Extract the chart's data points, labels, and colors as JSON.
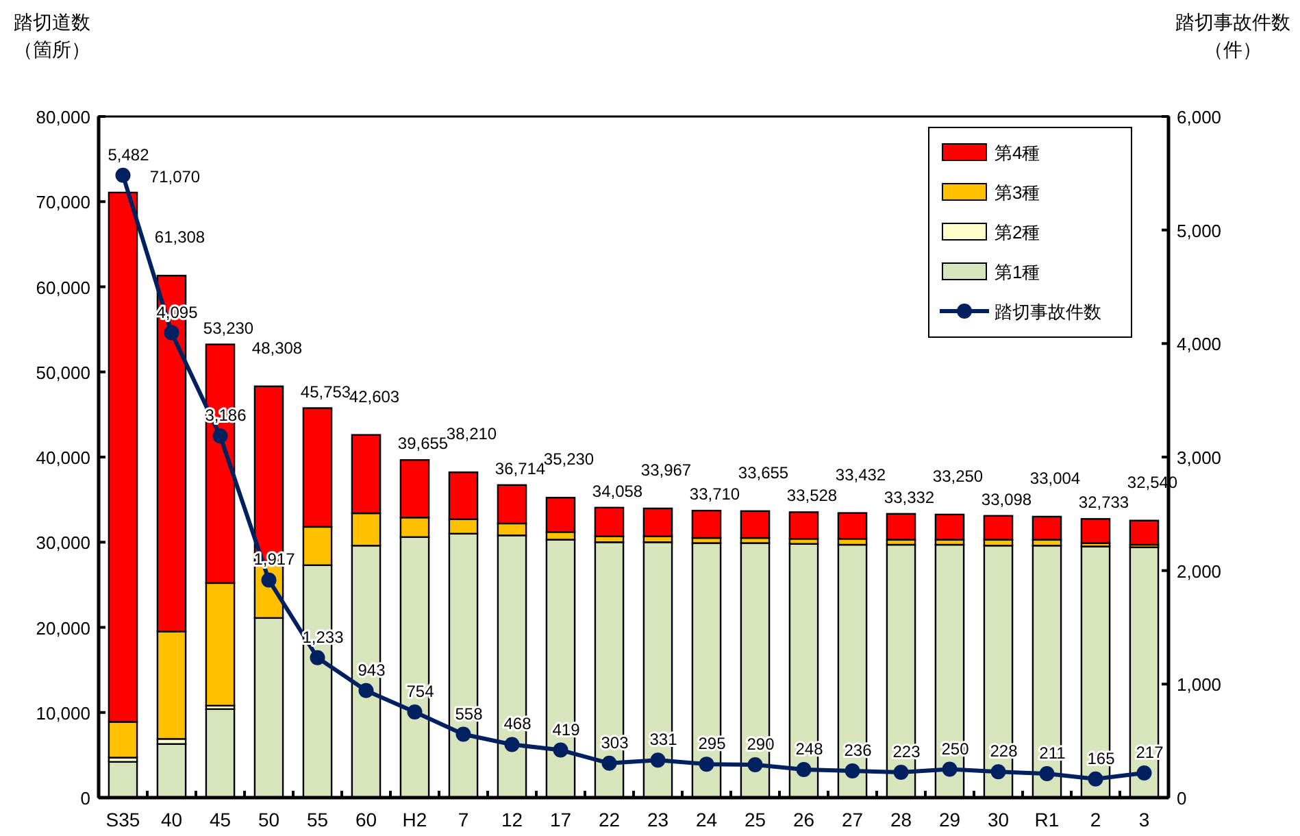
{
  "chart_data": {
    "type": "bar",
    "stacked": true,
    "ylabel": "踏切道数（箇所）",
    "y2label": "踏切事故件数（件）",
    "categories": [
      "S35",
      "40",
      "45",
      "50",
      "55",
      "60",
      "H2",
      "7",
      "12",
      "17",
      "22",
      "23",
      "24",
      "25",
      "26",
      "27",
      "28",
      "29",
      "30",
      "R1",
      "2",
      "3"
    ],
    "series": [
      {
        "name": "第1種",
        "color": "#d8e4bc",
        "values": [
          4200,
          6300,
          10400,
          21100,
          27300,
          29600,
          30600,
          31000,
          30800,
          30300,
          30000,
          30000,
          29900,
          29900,
          29800,
          29700,
          29700,
          29700,
          29600,
          29600,
          29500,
          29400
        ]
      },
      {
        "name": "第2種",
        "color": "#ffffcc",
        "values": [
          500,
          600,
          400,
          null,
          null,
          null,
          0,
          0,
          0,
          0,
          0,
          0,
          0,
          0,
          0,
          0,
          0,
          0,
          0,
          0,
          0,
          0
        ]
      },
      {
        "name": "第3種",
        "color": "#ffc000",
        "values": [
          4200,
          12600,
          14400,
          6700,
          4500,
          3800,
          2300,
          1700,
          1400,
          900,
          700,
          700,
          600,
          600,
          600,
          700,
          600,
          600,
          700,
          700,
          400,
          300
        ]
      },
      {
        "name": "第4種",
        "color": "#ff0000",
        "values": [
          62170,
          41808,
          28030,
          20508,
          13953,
          9203,
          6755,
          5510,
          4514,
          4030,
          3358,
          3267,
          3210,
          3155,
          3128,
          3032,
          3032,
          2950,
          2798,
          2704,
          2833,
          2840
        ]
      },
      {
        "name": "踏切事故件数",
        "type": "line",
        "axis": "y2",
        "color": "#002060",
        "marker": "circle",
        "values": [
          5482,
          4095,
          3186,
          1917,
          1233,
          943,
          754,
          558,
          468,
          419,
          303,
          331,
          295,
          290,
          248,
          236,
          223,
          250,
          228,
          211,
          165,
          217
        ],
        "value_labels": [
          "5,482",
          "4,095",
          "3,186",
          "1,917",
          "1,233",
          "943",
          "754",
          "558",
          "468",
          "419",
          "303",
          "331",
          "295",
          "290",
          "248",
          "236",
          "223",
          "250",
          "228",
          "211",
          "165",
          "217"
        ]
      }
    ],
    "totals": [
      "71,070",
      "61,308",
      "53,230",
      "48,308",
      "45,753",
      "42,603",
      "39,655",
      "38,210",
      "36,714",
      "35,230",
      "34,058",
      "33,967",
      "33,710",
      "33,655",
      "33,528",
      "33,432",
      "33,332",
      "33,250",
      "33,098",
      "33,004",
      "32,733",
      "32,540"
    ],
    "ylim": [
      0,
      80000
    ],
    "yticks": [
      {
        "value": 0,
        "label": "0"
      },
      {
        "value": 10000,
        "label": "10,000"
      },
      {
        "value": 20000,
        "label": "20,000"
      },
      {
        "value": 30000,
        "label": "30,000"
      },
      {
        "value": 40000,
        "label": "40,000"
      },
      {
        "value": 50000,
        "label": "50,000"
      },
      {
        "value": 60000,
        "label": "60,000"
      },
      {
        "value": 70000,
        "label": "70,000"
      },
      {
        "value": 80000,
        "label": "80,000"
      }
    ],
    "y2lim": [
      0,
      6000
    ],
    "y2ticks": [
      {
        "value": 0,
        "label": "0"
      },
      {
        "value": 1000,
        "label": "1,000"
      },
      {
        "value": 2000,
        "label": "2,000"
      },
      {
        "value": 3000,
        "label": "3,000"
      },
      {
        "value": 4000,
        "label": "4,000"
      },
      {
        "value": 5000,
        "label": "5,000"
      },
      {
        "value": 6000,
        "label": "6,000"
      }
    ],
    "grid": false,
    "legend": "top right"
  }
}
